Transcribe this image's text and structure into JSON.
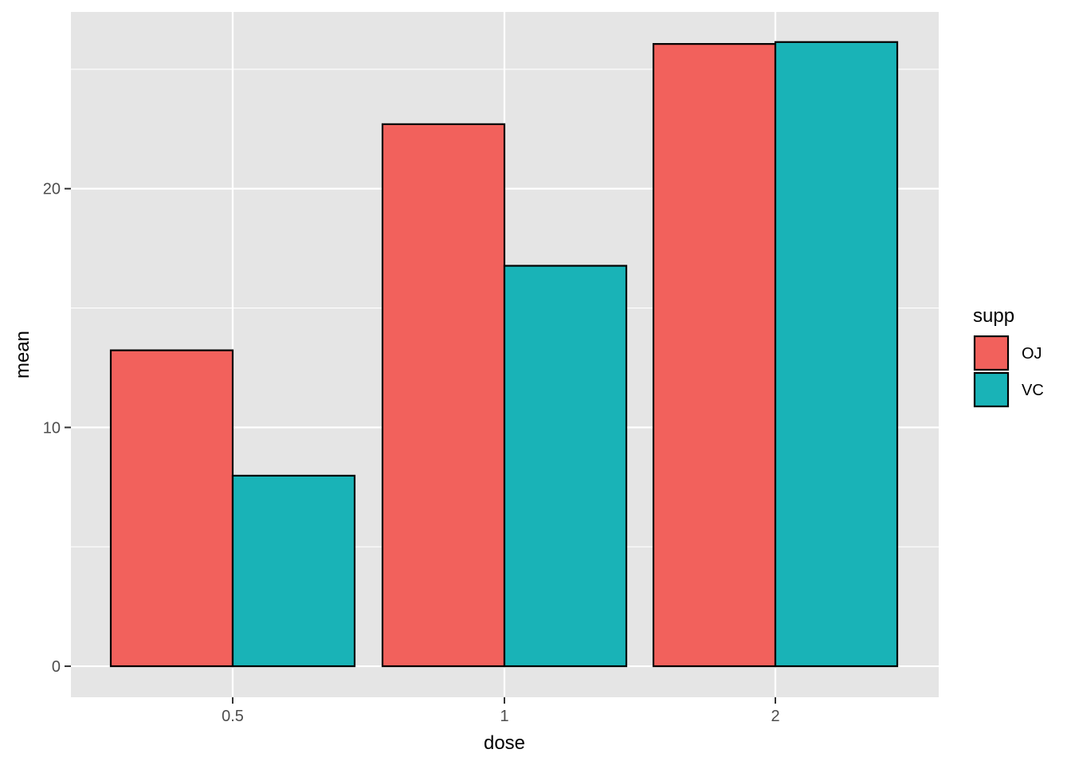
{
  "chart_data": {
    "type": "bar",
    "xlabel": "dose",
    "ylabel": "mean",
    "categories": [
      "0.5",
      "1",
      "2"
    ],
    "series": [
      {
        "name": "OJ",
        "color": "#F2615C",
        "values": [
          13.23,
          22.7,
          26.06
        ]
      },
      {
        "name": "VC",
        "color": "#19B3B7",
        "values": [
          7.98,
          16.77,
          26.14
        ]
      }
    ],
    "ylim": [
      -1.3,
      27.4
    ],
    "yticks": [
      0,
      10,
      20
    ],
    "y_minor_gridlines": [
      5,
      15,
      25
    ],
    "grid": true,
    "panel_color": "#E5E5E5",
    "bar_outline_color": "#000000",
    "legend": {
      "title": "supp",
      "placement": "right"
    }
  }
}
